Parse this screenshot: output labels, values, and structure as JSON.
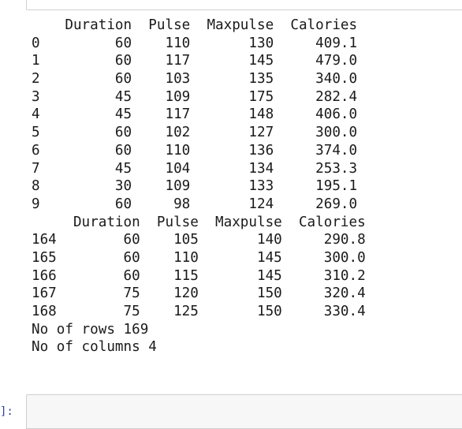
{
  "output": {
    "lines": [
      "    Duration  Pulse  Maxpulse  Calories",
      "0         60    110       130     409.1",
      "1         60    117       145     479.0",
      "2         60    103       135     340.0",
      "3         45    109       175     282.4",
      "4         45    117       148     406.0",
      "5         60    102       127     300.0",
      "6         60    110       136     374.0",
      "7         45    104       134     253.3",
      "8         30    109       133     195.1",
      "9         60     98       124     269.0",
      "     Duration  Pulse  Maxpulse  Calories",
      "164        60    105       140     290.8",
      "165        60    110       145     300.0",
      "166        60    115       145     310.2",
      "167        75    120       150     320.4",
      "168        75    125       150     330.4",
      "No of rows 169",
      "No of columns 4"
    ]
  },
  "next_cell": {
    "prompt": "]:",
    "code": ""
  }
}
